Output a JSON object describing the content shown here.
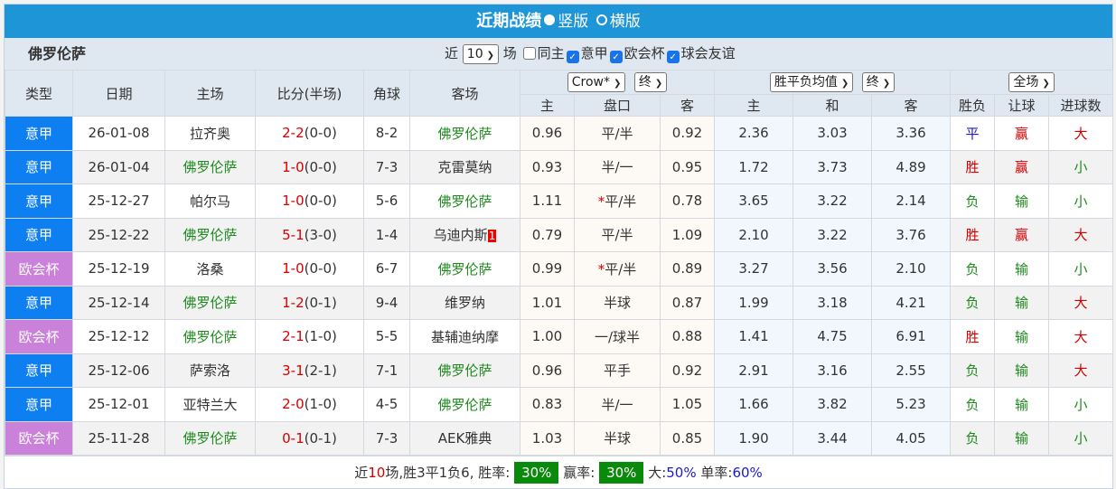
{
  "title": {
    "text": "近期战绩",
    "opt1": "竖版",
    "opt2": "横版"
  },
  "team": "佛罗伦萨",
  "filters": {
    "near": "近",
    "count": "10",
    "unit": "场",
    "same_home": "同主",
    "leagues": [
      "意甲",
      "欧会杯",
      "球会友谊"
    ]
  },
  "selects": {
    "company": "Crow*",
    "company_stage": "终",
    "odds_type": "胜平负均值",
    "odds_stage": "终",
    "scope": "全场"
  },
  "headers": {
    "type": "类型",
    "date": "日期",
    "home": "主场",
    "score": "比分(半场)",
    "corner": "角球",
    "away": "客场",
    "ah_home": "主",
    "ah_line": "盘口",
    "ah_away": "客",
    "eu_home": "主",
    "eu_draw": "和",
    "eu_away": "客",
    "wl": "胜负",
    "hc": "让球",
    "ou": "进球数"
  },
  "colors": {
    "accent": "#1e95d6",
    "league_seriea": "#0d7ff0",
    "league_conf": "#c981da",
    "win_badge": "#0a8a0a"
  },
  "rows": [
    {
      "type": "意甲",
      "date": "26-01-08",
      "home": "拉齐奥",
      "score": "2-2",
      "half": "(0-0)",
      "corner": "8-2",
      "away": "佛罗伦萨",
      "away_red": "",
      "ah_h": "0.96",
      "star": "",
      "line": "平/半",
      "ah_a": "0.92",
      "e_h": "2.36",
      "e_d": "3.03",
      "e_a": "3.36",
      "wl": "平",
      "hc": "赢",
      "ou": "大",
      "flor": "away"
    },
    {
      "type": "意甲",
      "date": "26-01-04",
      "home": "佛罗伦萨",
      "score": "1-0",
      "half": "(0-0)",
      "corner": "7-3",
      "away": "克雷莫纳",
      "away_red": "",
      "ah_h": "0.93",
      "star": "",
      "line": "半/一",
      "ah_a": "0.95",
      "e_h": "1.72",
      "e_d": "3.73",
      "e_a": "4.89",
      "wl": "胜",
      "hc": "赢",
      "ou": "小",
      "flor": "home"
    },
    {
      "type": "意甲",
      "date": "25-12-27",
      "home": "帕尔马",
      "score": "1-0",
      "half": "(0-0)",
      "corner": "5-6",
      "away": "佛罗伦萨",
      "away_red": "",
      "ah_h": "1.11",
      "star": "*",
      "line": "平/半",
      "ah_a": "0.78",
      "e_h": "3.65",
      "e_d": "3.22",
      "e_a": "2.14",
      "wl": "负",
      "hc": "输",
      "ou": "小",
      "flor": "away"
    },
    {
      "type": "意甲",
      "date": "25-12-22",
      "home": "佛罗伦萨",
      "score": "5-1",
      "half": "(3-0)",
      "corner": "1-4",
      "away": "乌迪内斯",
      "away_red": "1",
      "ah_h": "0.79",
      "star": "",
      "line": "平/半",
      "ah_a": "1.09",
      "e_h": "2.10",
      "e_d": "3.22",
      "e_a": "3.76",
      "wl": "胜",
      "hc": "赢",
      "ou": "大",
      "flor": "home"
    },
    {
      "type": "欧会杯",
      "date": "25-12-19",
      "home": "洛桑",
      "score": "1-0",
      "half": "(0-0)",
      "corner": "6-7",
      "away": "佛罗伦萨",
      "away_red": "",
      "ah_h": "0.99",
      "star": "*",
      "line": "平/半",
      "ah_a": "0.89",
      "e_h": "3.27",
      "e_d": "3.56",
      "e_a": "2.10",
      "wl": "负",
      "hc": "输",
      "ou": "小",
      "flor": "away"
    },
    {
      "type": "意甲",
      "date": "25-12-14",
      "home": "佛罗伦萨",
      "score": "1-2",
      "half": "(0-1)",
      "corner": "9-4",
      "away": "维罗纳",
      "away_red": "",
      "ah_h": "1.01",
      "star": "",
      "line": "半球",
      "ah_a": "0.87",
      "e_h": "1.99",
      "e_d": "3.18",
      "e_a": "4.21",
      "wl": "负",
      "hc": "输",
      "ou": "大",
      "flor": "home"
    },
    {
      "type": "欧会杯",
      "date": "25-12-12",
      "home": "佛罗伦萨",
      "score": "2-1",
      "half": "(1-0)",
      "corner": "5-5",
      "away": "基辅迪纳摩",
      "away_red": "",
      "ah_h": "1.00",
      "star": "",
      "line": "一/球半",
      "ah_a": "0.88",
      "e_h": "1.41",
      "e_d": "4.75",
      "e_a": "6.91",
      "wl": "胜",
      "hc": "输",
      "ou": "大",
      "flor": "home"
    },
    {
      "type": "意甲",
      "date": "25-12-06",
      "home": "萨索洛",
      "score": "3-1",
      "half": "(2-1)",
      "corner": "7-1",
      "away": "佛罗伦萨",
      "away_red": "",
      "ah_h": "0.96",
      "star": "",
      "line": "平手",
      "ah_a": "0.92",
      "e_h": "2.91",
      "e_d": "3.16",
      "e_a": "2.55",
      "wl": "负",
      "hc": "输",
      "ou": "大",
      "flor": "away"
    },
    {
      "type": "意甲",
      "date": "25-12-01",
      "home": "亚特兰大",
      "score": "2-0",
      "half": "(1-0)",
      "corner": "4-5",
      "away": "佛罗伦萨",
      "away_red": "",
      "ah_h": "0.83",
      "star": "",
      "line": "半/一",
      "ah_a": "1.05",
      "e_h": "1.66",
      "e_d": "3.82",
      "e_a": "5.23",
      "wl": "负",
      "hc": "输",
      "ou": "小",
      "flor": "away"
    },
    {
      "type": "欧会杯",
      "date": "25-11-28",
      "home": "佛罗伦萨",
      "score": "0-1",
      "half": "(0-1)",
      "corner": "7-3",
      "away": "AEK雅典",
      "away_red": "",
      "ah_h": "1.03",
      "star": "",
      "line": "半球",
      "ah_a": "0.85",
      "e_h": "1.90",
      "e_d": "3.44",
      "e_a": "4.05",
      "wl": "负",
      "hc": "输",
      "ou": "小",
      "flor": "home"
    }
  ],
  "footer": {
    "p1": "近",
    "n": "10",
    "p2": "场,胜3平1负6, 胜率:",
    "win_rate": "30%",
    "p3": "赢率:",
    "cover_rate": "30%",
    "p4": "大:",
    "over_rate": "50%",
    "p5": "单率:",
    "odd_rate": "60%"
  }
}
